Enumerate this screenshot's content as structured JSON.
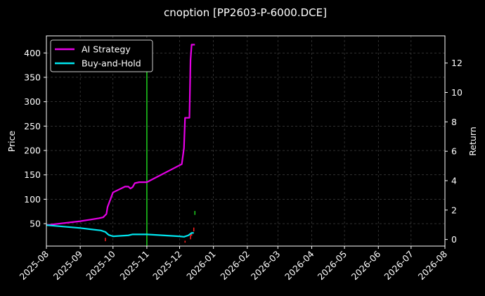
{
  "chart_data": {
    "type": "line",
    "title": "cnoption [PP2603-P-6000.DCE]",
    "ylabel_left": "Price",
    "ylabel_right": "Return",
    "xlim": [
      "2025-08-01",
      "2026-08-01"
    ],
    "ylim_left": [
      4,
      435
    ],
    "ylim_right": [
      -0.45,
      13.85
    ],
    "x_ticks": [
      "2025-08-01",
      "2025-09-01",
      "2025-10-01",
      "2025-11-01",
      "2025-12-01",
      "2026-01-01",
      "2026-02-01",
      "2026-03-01",
      "2026-04-01",
      "2026-05-01",
      "2026-06-01",
      "2026-07-01",
      "2026-08-01"
    ],
    "x_tick_labels": [
      "2025-08",
      "2025-09",
      "2025-10",
      "2025-11",
      "2025-12",
      "2026-01",
      "2026-02",
      "2026-03",
      "2026-04",
      "2026-05",
      "2026-06",
      "2026-07",
      "2026-08"
    ],
    "y_ticks_left": [
      50,
      100,
      150,
      200,
      250,
      300,
      350,
      400
    ],
    "y_ticks_right": [
      0,
      2,
      4,
      6,
      8,
      10,
      12
    ],
    "grid": true,
    "legend_position": "top-left",
    "series": [
      {
        "name": "AI Strategy",
        "axis": "left",
        "color": "#e600e6",
        "points": [
          [
            "2025-08-01",
            47
          ],
          [
            "2025-09-01",
            55
          ],
          [
            "2025-09-18",
            61
          ],
          [
            "2025-09-22",
            63
          ],
          [
            "2025-09-25",
            70
          ],
          [
            "2025-09-26",
            84
          ],
          [
            "2025-09-28",
            96
          ],
          [
            "2025-10-01",
            114
          ],
          [
            "2025-10-12",
            126
          ],
          [
            "2025-10-15",
            126
          ],
          [
            "2025-10-17",
            122
          ],
          [
            "2025-10-19",
            125
          ],
          [
            "2025-10-21",
            133
          ],
          [
            "2025-10-25",
            135
          ],
          [
            "2025-11-01",
            135
          ],
          [
            "2025-12-03",
            172
          ],
          [
            "2025-12-05",
            205
          ],
          [
            "2025-12-06",
            267
          ],
          [
            "2025-12-10",
            267
          ],
          [
            "2025-12-11",
            385
          ],
          [
            "2025-12-12",
            417
          ],
          [
            "2025-12-15",
            417
          ]
        ]
      },
      {
        "name": "Buy-and-Hold",
        "axis": "left",
        "color": "#00e5ee",
        "points": [
          [
            "2025-08-01",
            47
          ],
          [
            "2025-09-01",
            41
          ],
          [
            "2025-09-20",
            36
          ],
          [
            "2025-09-24",
            33
          ],
          [
            "2025-09-27",
            27
          ],
          [
            "2025-10-01",
            24
          ],
          [
            "2025-10-15",
            26
          ],
          [
            "2025-10-19",
            28
          ],
          [
            "2025-11-01",
            28
          ],
          [
            "2025-12-01",
            24
          ],
          [
            "2025-12-05",
            23
          ],
          [
            "2025-12-09",
            26
          ],
          [
            "2025-12-12",
            31
          ],
          [
            "2025-12-14",
            31
          ]
        ]
      }
    ],
    "signals": {
      "buy": {
        "color": "#1fd21f",
        "marks": [
          {
            "x": "2025-11-01",
            "y_from": 4,
            "y_to": 410
          },
          {
            "x": "2025-12-15",
            "y_from": 68,
            "y_to": 76
          }
        ]
      },
      "sell": {
        "color": "#ff2020",
        "marks": [
          {
            "x": "2025-09-24",
            "y_from": 14,
            "y_to": 21
          },
          {
            "x": "2025-12-06",
            "y_from": 11,
            "y_to": 15
          },
          {
            "x": "2025-12-11",
            "y_from": 18,
            "y_to": 30
          },
          {
            "x": "2025-12-12",
            "y_from": 25,
            "y_to": 32
          },
          {
            "x": "2025-12-14",
            "y_from": 34,
            "y_to": 42
          }
        ]
      }
    }
  }
}
